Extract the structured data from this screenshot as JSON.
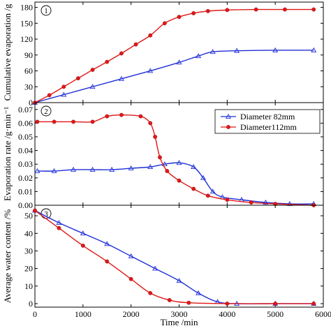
{
  "chart_data": {
    "type": "scatter",
    "xlabel": "Time /min",
    "xlim": [
      0,
      6000
    ],
    "x_ticks": [
      0,
      1000,
      2000,
      3000,
      4000,
      5000,
      6000
    ],
    "legend": {
      "placement": "top-right of panel 2",
      "entries": [
        {
          "series": "d82",
          "label": "Diameter 82mm",
          "marker": "open-triangle"
        },
        {
          "series": "d112",
          "label": "Diameter112mm",
          "marker": "filled-circle"
        }
      ]
    },
    "colors": {
      "d82": "#1f2fd6",
      "d112": "#e01818"
    },
    "panels": [
      {
        "id": "1",
        "marker_label": "1",
        "ylabel": "Cumulative evaporation /g",
        "ylim": [
          0,
          190
        ],
        "y_ticks": [
          0,
          30,
          60,
          90,
          120,
          150,
          180
        ],
        "y_tick_labels": [
          "0",
          "30",
          "60",
          "90",
          "120",
          "150",
          "180"
        ],
        "series": [
          {
            "key": "d82",
            "points": [
              [
                0,
                0
              ],
              [
                600,
                15
              ],
              [
                1200,
                30
              ],
              [
                1800,
                45
              ],
              [
                2400,
                60
              ],
              [
                3000,
                76
              ],
              [
                3400,
                88
              ],
              [
                3700,
                96
              ],
              [
                4200,
                98
              ],
              [
                5000,
                99
              ],
              [
                5800,
                99
              ]
            ]
          },
          {
            "key": "d112",
            "points": [
              [
                0,
                0
              ],
              [
                300,
                14
              ],
              [
                600,
                30
              ],
              [
                900,
                46
              ],
              [
                1200,
                62
              ],
              [
                1500,
                77
              ],
              [
                1800,
                93
              ],
              [
                2100,
                110
              ],
              [
                2400,
                127
              ],
              [
                2700,
                150
              ],
              [
                3000,
                162
              ],
              [
                3300,
                169
              ],
              [
                3600,
                173
              ],
              [
                4000,
                175
              ],
              [
                4600,
                176
              ],
              [
                5200,
                176
              ],
              [
                5800,
                176
              ]
            ]
          }
        ]
      },
      {
        "id": "2",
        "marker_label": "2",
        "ylabel": "Evaporation rate /g·min⁻¹",
        "ylim": [
          0,
          0.075
        ],
        "y_ticks": [
          0,
          0.01,
          0.02,
          0.03,
          0.04,
          0.05,
          0.06,
          0.07
        ],
        "y_tick_labels": [
          "0.00",
          "0.01",
          "0.02",
          "0.03",
          "0.04",
          "0.05",
          "0.06",
          "0.07"
        ],
        "series": [
          {
            "key": "d82",
            "points": [
              [
                50,
                0.025
              ],
              [
                400,
                0.025
              ],
              [
                800,
                0.026
              ],
              [
                1200,
                0.026
              ],
              [
                1600,
                0.026
              ],
              [
                2000,
                0.027
              ],
              [
                2400,
                0.028
              ],
              [
                2700,
                0.03
              ],
              [
                3000,
                0.031
              ],
              [
                3300,
                0.028
              ],
              [
                3500,
                0.02
              ],
              [
                3700,
                0.01
              ],
              [
                3900,
                0.006
              ],
              [
                4300,
                0.004
              ],
              [
                4800,
                0.002
              ],
              [
                5300,
                0.001
              ],
              [
                5800,
                0.001
              ]
            ]
          },
          {
            "key": "d112",
            "points": [
              [
                50,
                0.061
              ],
              [
                400,
                0.061
              ],
              [
                800,
                0.061
              ],
              [
                1200,
                0.061
              ],
              [
                1500,
                0.065
              ],
              [
                1800,
                0.066
              ],
              [
                2200,
                0.065
              ],
              [
                2400,
                0.06
              ],
              [
                2500,
                0.05
              ],
              [
                2600,
                0.035
              ],
              [
                2750,
                0.025
              ],
              [
                3000,
                0.018
              ],
              [
                3300,
                0.012
              ],
              [
                3600,
                0.007
              ],
              [
                4000,
                0.004
              ],
              [
                4500,
                0.002
              ],
              [
                5000,
                0.001
              ],
              [
                5800,
                0.0
              ]
            ]
          }
        ]
      },
      {
        "id": "3",
        "marker_label": "3",
        "ylabel": "Average water content /%",
        "ylim": [
          -2,
          56
        ],
        "y_ticks": [
          0,
          10,
          20,
          30,
          40,
          50
        ],
        "y_tick_labels": [
          "0",
          "10",
          "20",
          "30",
          "40",
          "50"
        ],
        "series": [
          {
            "key": "d82",
            "points": [
              [
                0,
                53
              ],
              [
                500,
                46
              ],
              [
                1000,
                40
              ],
              [
                1500,
                34
              ],
              [
                2000,
                27
              ],
              [
                2500,
                20
              ],
              [
                3000,
                13
              ],
              [
                3400,
                6
              ],
              [
                3800,
                1
              ],
              [
                4200,
                0
              ],
              [
                5000,
                0
              ],
              [
                5800,
                0
              ]
            ]
          },
          {
            "key": "d112",
            "points": [
              [
                0,
                53
              ],
              [
                500,
                43
              ],
              [
                1000,
                33
              ],
              [
                1500,
                24
              ],
              [
                2000,
                14
              ],
              [
                2400,
                6
              ],
              [
                2800,
                2
              ],
              [
                3200,
                0.5
              ],
              [
                4000,
                0
              ],
              [
                5000,
                0
              ],
              [
                5800,
                0
              ]
            ]
          }
        ]
      }
    ]
  }
}
